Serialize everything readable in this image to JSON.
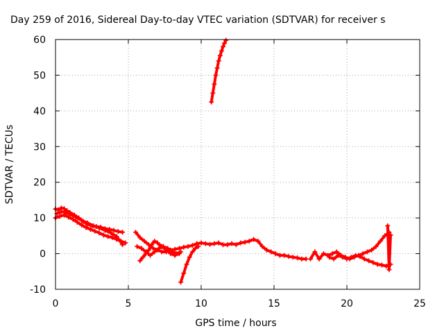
{
  "chart_data": {
    "type": "scatter",
    "title": "Day 259 of 2016, Sidereal Day-to-day VTEC variation (SDTVAR) for receiver s",
    "xlabel": "GPS time / hours",
    "ylabel": "SDTVAR / TECUs",
    "xlim": [
      0,
      25
    ],
    "ylim": [
      -10,
      60
    ],
    "xticks": [
      "0",
      "5",
      "10",
      "15",
      "20",
      "25"
    ],
    "yticks": [
      "-10",
      "0",
      "10",
      "20",
      "30",
      "40",
      "50",
      "60"
    ],
    "grid": true,
    "marker": "plus",
    "color": "#ff0000",
    "series": [
      {
        "x": [
          0.0,
          0.2,
          0.4,
          0.6,
          0.8,
          1.0,
          1.3,
          1.6,
          1.9,
          2.2,
          2.5,
          2.8,
          3.1,
          3.4,
          3.7,
          4.0,
          4.3,
          4.6
        ],
        "y": [
          12.5,
          12.3,
          12.8,
          12.6,
          12.0,
          11.5,
          10.8,
          10.0,
          9.0,
          8.2,
          7.8,
          7.6,
          7.4,
          7.0,
          6.8,
          6.5,
          6.2,
          6.0
        ]
      },
      {
        "x": [
          0.0,
          0.3,
          0.6,
          0.9,
          1.2,
          1.5,
          1.8,
          2.1,
          2.4,
          2.7,
          3.0,
          3.3,
          3.6,
          3.9,
          4.2,
          4.5,
          4.8
        ],
        "y": [
          10.0,
          10.5,
          10.8,
          10.2,
          9.6,
          8.8,
          8.0,
          7.3,
          6.8,
          6.3,
          5.8,
          5.2,
          4.8,
          4.5,
          4.0,
          3.5,
          3.0
        ]
      },
      {
        "x": [
          0.1,
          0.4,
          0.7,
          1.0,
          1.4,
          1.8,
          2.2,
          2.6,
          3.0,
          3.4,
          3.8,
          4.2,
          4.6
        ],
        "y": [
          11.2,
          11.8,
          11.5,
          11.0,
          10.2,
          9.3,
          8.6,
          7.8,
          7.2,
          6.5,
          5.8,
          4.8,
          2.5
        ]
      },
      {
        "x": [
          5.5,
          5.8,
          6.1,
          6.4,
          6.7,
          7.0,
          7.3,
          7.6,
          7.9,
          8.2,
          8.5,
          8.8,
          9.1,
          9.4,
          9.7,
          10.0,
          10.3,
          10.6,
          10.9,
          11.2,
          11.5,
          11.8,
          12.1,
          12.4,
          12.7,
          13.0,
          13.3,
          13.6,
          13.9,
          14.2,
          14.5,
          14.8,
          15.1,
          15.4,
          15.7,
          16.0,
          16.3,
          16.6,
          16.9,
          17.2
        ],
        "y": [
          6.0,
          4.5,
          3.5,
          2.5,
          1.5,
          1.0,
          0.5,
          0.5,
          1.0,
          1.2,
          1.5,
          1.8,
          2.0,
          2.3,
          2.8,
          3.0,
          2.8,
          2.6,
          2.8,
          3.0,
          2.5,
          2.5,
          2.8,
          2.5,
          3.0,
          3.2,
          3.5,
          4.0,
          3.5,
          2.0,
          1.0,
          0.5,
          0.0,
          -0.5,
          -0.5,
          -0.8,
          -1.0,
          -1.2,
          -1.5,
          -1.5
        ]
      },
      {
        "x": [
          5.6,
          5.9,
          6.2,
          6.5,
          6.8,
          7.1,
          7.4,
          7.7,
          8.0,
          8.3,
          8.6
        ],
        "y": [
          2.0,
          1.5,
          0.5,
          -0.5,
          0.5,
          1.5,
          2.0,
          1.5,
          0.5,
          0.0,
          0.5
        ]
      },
      {
        "x": [
          5.8,
          6.0,
          6.2,
          6.4,
          6.6,
          6.8,
          7.0,
          7.3,
          7.6,
          7.9,
          8.2,
          8.5
        ],
        "y": [
          -2.0,
          -1.0,
          0.0,
          1.0,
          2.5,
          3.5,
          3.0,
          2.0,
          1.0,
          0.0,
          -0.5,
          0.0
        ]
      },
      {
        "x": [
          8.6,
          8.8,
          9.0,
          9.2,
          9.4,
          9.6,
          9.8
        ],
        "y": [
          -8.0,
          -5.5,
          -3.0,
          -1.0,
          0.5,
          1.5,
          2.0
        ]
      },
      {
        "x": [
          10.7,
          10.8,
          10.9,
          11.0,
          11.1,
          11.2,
          11.3,
          11.4,
          11.5,
          11.6,
          11.7
        ],
        "y": [
          42.5,
          45.0,
          47.5,
          50.0,
          52.0,
          54.0,
          55.5,
          56.8,
          58.0,
          59.0,
          59.8
        ]
      },
      {
        "x": [
          17.5,
          17.8,
          18.1,
          18.4,
          18.7,
          19.0,
          19.3,
          19.6,
          19.9,
          20.2,
          20.5,
          20.8,
          21.1,
          21.4,
          21.7,
          22.0,
          22.3,
          22.6,
          22.9
        ],
        "y": [
          -1.5,
          0.5,
          -1.5,
          0.0,
          -0.5,
          0.0,
          0.5,
          -0.5,
          -1.0,
          -1.5,
          -1.0,
          -0.5,
          0.0,
          0.5,
          1.0,
          2.0,
          3.5,
          5.0,
          6.0
        ]
      },
      {
        "x": [
          18.8,
          19.1,
          19.4,
          19.7,
          20.0,
          20.3,
          20.6,
          20.9,
          21.2,
          21.5,
          21.8,
          22.1,
          22.4,
          22.7,
          23.0
        ],
        "y": [
          -1.0,
          -1.5,
          -0.5,
          -1.0,
          -1.5,
          -1.0,
          -0.5,
          -0.8,
          -1.5,
          -2.0,
          -2.5,
          -3.0,
          -3.2,
          -3.5,
          -3.0
        ]
      },
      {
        "x": [
          22.8,
          22.9,
          23.0
        ],
        "y": [
          7.8,
          -4.5,
          5.2
        ]
      }
    ]
  }
}
